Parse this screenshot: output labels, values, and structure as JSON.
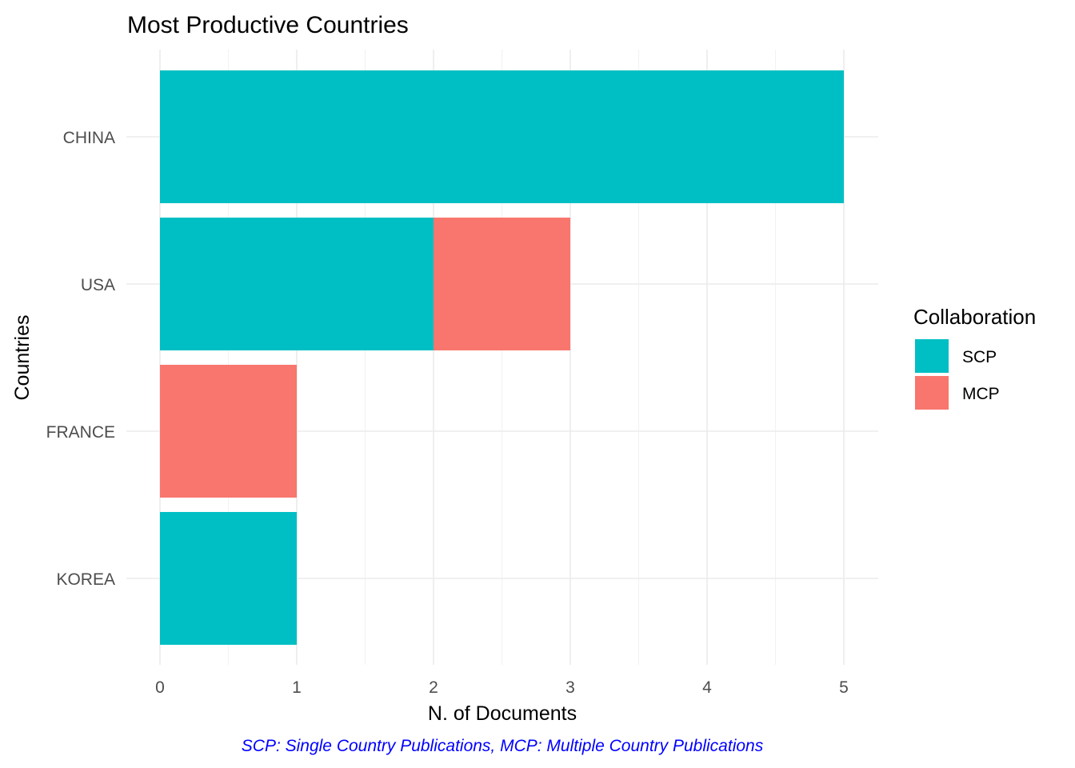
{
  "chart_data": {
    "type": "bar",
    "orientation": "horizontal",
    "stacked": true,
    "title": "Most Productive Countries",
    "xlabel": "N. of Documents",
    "ylabel": "Countries",
    "categories": [
      "CHINA",
      "USA",
      "FRANCE",
      "KOREA"
    ],
    "series": [
      {
        "name": "SCP",
        "color": "#00BFC4",
        "values": [
          5,
          2,
          0,
          1
        ]
      },
      {
        "name": "MCP",
        "color": "#F8766D",
        "values": [
          0,
          1,
          1,
          0
        ]
      }
    ],
    "xlim": [
      0,
      5
    ],
    "xticks": [
      "0",
      "1",
      "2",
      "3",
      "4",
      "5"
    ],
    "legend": {
      "title": "Collaboration",
      "placement": "right"
    },
    "caption": "SCP: Single Country Publications, MCP: Multiple Country Publications",
    "caption_color": "#0000FF",
    "grid": true
  }
}
